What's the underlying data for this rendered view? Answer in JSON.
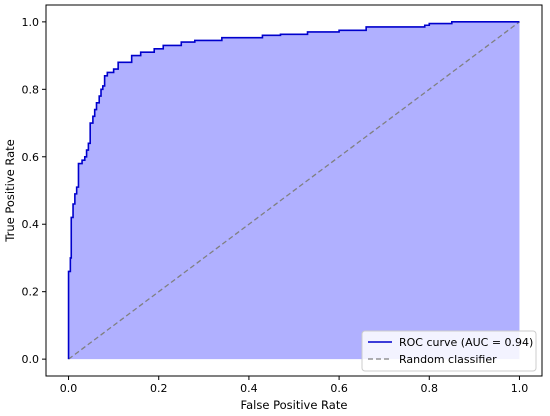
{
  "chart_data": {
    "type": "line",
    "xlabel": "False Positive Rate",
    "ylabel": "True Positive Rate",
    "xlim": [
      -0.05,
      1.05
    ],
    "ylim": [
      -0.05,
      1.05
    ],
    "xticks": [
      "0.0",
      "0.2",
      "0.4",
      "0.6",
      "0.8",
      "1.0"
    ],
    "yticks": [
      "0.0",
      "0.2",
      "0.4",
      "0.6",
      "0.8",
      "1.0"
    ],
    "grid": false,
    "legend_position": "bottom-right",
    "colors": {
      "roc_line": "#0000cc",
      "roc_fill": "#b0b0ff",
      "baseline": "#808080"
    },
    "series": [
      {
        "name": "ROC curve (AUC = 0.94)",
        "style": "solid",
        "filled": true,
        "points": [
          [
            0.0,
            0.0
          ],
          [
            0.0,
            0.26
          ],
          [
            0.004,
            0.26
          ],
          [
            0.004,
            0.3
          ],
          [
            0.006,
            0.3
          ],
          [
            0.006,
            0.42
          ],
          [
            0.01,
            0.42
          ],
          [
            0.01,
            0.46
          ],
          [
            0.014,
            0.46
          ],
          [
            0.014,
            0.49
          ],
          [
            0.018,
            0.49
          ],
          [
            0.018,
            0.51
          ],
          [
            0.022,
            0.51
          ],
          [
            0.022,
            0.58
          ],
          [
            0.03,
            0.58
          ],
          [
            0.03,
            0.59
          ],
          [
            0.036,
            0.59
          ],
          [
            0.036,
            0.6
          ],
          [
            0.04,
            0.6
          ],
          [
            0.04,
            0.62
          ],
          [
            0.044,
            0.62
          ],
          [
            0.044,
            0.64
          ],
          [
            0.048,
            0.64
          ],
          [
            0.048,
            0.7
          ],
          [
            0.054,
            0.7
          ],
          [
            0.054,
            0.72
          ],
          [
            0.058,
            0.72
          ],
          [
            0.058,
            0.74
          ],
          [
            0.062,
            0.74
          ],
          [
            0.062,
            0.76
          ],
          [
            0.068,
            0.76
          ],
          [
            0.068,
            0.78
          ],
          [
            0.072,
            0.78
          ],
          [
            0.072,
            0.8
          ],
          [
            0.076,
            0.8
          ],
          [
            0.076,
            0.81
          ],
          [
            0.08,
            0.81
          ],
          [
            0.08,
            0.84
          ],
          [
            0.086,
            0.84
          ],
          [
            0.086,
            0.85
          ],
          [
            0.1,
            0.85
          ],
          [
            0.1,
            0.86
          ],
          [
            0.11,
            0.86
          ],
          [
            0.11,
            0.88
          ],
          [
            0.14,
            0.88
          ],
          [
            0.14,
            0.9
          ],
          [
            0.16,
            0.9
          ],
          [
            0.16,
            0.91
          ],
          [
            0.19,
            0.91
          ],
          [
            0.19,
            0.92
          ],
          [
            0.21,
            0.92
          ],
          [
            0.21,
            0.93
          ],
          [
            0.25,
            0.93
          ],
          [
            0.25,
            0.94
          ],
          [
            0.28,
            0.94
          ],
          [
            0.28,
            0.945
          ],
          [
            0.34,
            0.945
          ],
          [
            0.34,
            0.953
          ],
          [
            0.43,
            0.953
          ],
          [
            0.43,
            0.96
          ],
          [
            0.47,
            0.96
          ],
          [
            0.47,
            0.963
          ],
          [
            0.53,
            0.963
          ],
          [
            0.53,
            0.97
          ],
          [
            0.6,
            0.97
          ],
          [
            0.6,
            0.975
          ],
          [
            0.66,
            0.975
          ],
          [
            0.66,
            0.985
          ],
          [
            0.79,
            0.985
          ],
          [
            0.79,
            0.99
          ],
          [
            0.8,
            0.99
          ],
          [
            0.8,
            0.995
          ],
          [
            0.85,
            0.995
          ],
          [
            0.85,
            1.0
          ],
          [
            1.0,
            1.0
          ]
        ]
      },
      {
        "name": "Random classifier",
        "style": "dashed",
        "filled": false,
        "points": [
          [
            0,
            0
          ],
          [
            1,
            1
          ]
        ]
      }
    ]
  }
}
